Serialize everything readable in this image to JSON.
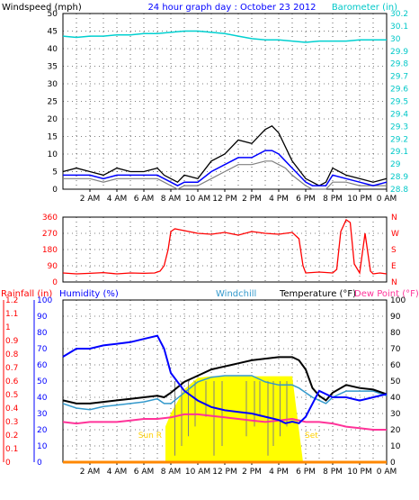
{
  "chart_data": [
    {
      "type": "line",
      "panel": "wind",
      "title": "24 hour graph day : October 23 2012",
      "ylabel_left": "Windspeed (mph)",
      "ylabel_right": "Barometer (in)",
      "ylim_left": [
        0,
        50
      ],
      "ylim_right": [
        28.8,
        30.2
      ],
      "yticks_left": [
        "0",
        "5",
        "10",
        "15",
        "20",
        "25",
        "30",
        "35",
        "40",
        "45",
        "50"
      ],
      "yticks_right": [
        "28.8",
        "28.9",
        "29",
        "29.1",
        "29.2",
        "29.3",
        "29.4",
        "29.5",
        "29.6",
        "29.7",
        "29.8",
        "29.9",
        "30",
        "30.1",
        "30.2"
      ],
      "xticks": [
        "2 AM",
        "4 AM",
        "6 AM",
        "8 AM",
        "10 AM",
        "12 PM",
        "2 PM",
        "4 PM",
        "6 PM",
        "8 PM",
        "10 PM",
        "0 AM"
      ],
      "x_hours": [
        0,
        24
      ],
      "grid": true,
      "colors": {
        "gust": "#000000",
        "avg": "#0000ff",
        "gray": "#808080",
        "baro": "#00d0d0",
        "title": "#0000ff",
        "right_axis": "#00c8c8"
      },
      "series": [
        {
          "name": "Barometer (in)",
          "axis": "right",
          "color": "#00d0d0",
          "x": [
            0,
            1,
            2,
            3,
            4,
            5,
            6,
            7,
            8,
            9,
            10,
            11,
            12,
            13,
            14,
            15,
            16,
            17,
            18,
            19,
            20,
            21,
            22,
            23,
            24
          ],
          "values": [
            30.02,
            30.01,
            30.02,
            30.02,
            30.03,
            30.03,
            30.04,
            30.04,
            30.05,
            30.06,
            30.06,
            30.05,
            30.04,
            30.02,
            30.0,
            29.99,
            29.99,
            29.98,
            29.97,
            29.98,
            29.98,
            29.98,
            29.99,
            29.99,
            29.99
          ]
        },
        {
          "axis": "left",
          "color": "#000000",
          "x": [
            0,
            1,
            2,
            3,
            4,
            5,
            6,
            7,
            7.5,
            8,
            8.5,
            9,
            10,
            11,
            12,
            13,
            14,
            15,
            15.5,
            16,
            16.5,
            17,
            18,
            18.5,
            19,
            19.5,
            20,
            21,
            22,
            23,
            24
          ],
          "values": [
            5,
            6,
            5,
            4,
            6,
            5,
            5,
            6,
            4,
            3,
            2,
            4,
            3,
            8,
            10,
            14,
            13,
            17,
            18,
            16,
            12,
            8,
            3,
            2,
            1,
            2,
            6,
            4,
            3,
            2,
            3
          ]
        },
        {
          "axis": "left",
          "color": "#0000ff",
          "x": [
            0,
            1,
            2,
            3,
            4,
            5,
            6,
            7,
            7.5,
            8,
            8.5,
            9,
            10,
            11,
            12,
            13,
            14,
            15,
            15.5,
            16,
            16.5,
            17,
            18,
            18.5,
            19,
            19.5,
            20,
            21,
            22,
            23,
            24
          ],
          "values": [
            4,
            4,
            4,
            3,
            4,
            4,
            4,
            4,
            3,
            2,
            1,
            2,
            2,
            5,
            7,
            9,
            9,
            11,
            11,
            10,
            8,
            6,
            2,
            1,
            1,
            1,
            4,
            3,
            2,
            1,
            2
          ]
        },
        {
          "axis": "left",
          "color": "#808080",
          "x": [
            0,
            1,
            2,
            3,
            4,
            5,
            6,
            7,
            7.5,
            8,
            8.5,
            9,
            10,
            11,
            12,
            13,
            14,
            15,
            15.5,
            16,
            16.5,
            17,
            18,
            18.5,
            19,
            19.5,
            20,
            21,
            22,
            23,
            24
          ],
          "values": [
            3,
            3,
            3,
            2,
            3,
            3,
            3,
            3,
            2,
            1,
            0,
            1,
            1,
            3,
            5,
            7,
            7,
            8,
            8,
            7,
            6,
            4,
            1,
            0,
            0,
            0,
            2,
            2,
            1,
            1,
            1
          ]
        }
      ]
    },
    {
      "type": "line",
      "panel": "direction",
      "ylim": [
        0,
        360
      ],
      "yticks_left": [
        "0",
        "90",
        "180",
        "270",
        "360"
      ],
      "yticks_right": [
        "N",
        "E",
        "S",
        "W",
        "N"
      ],
      "xticks": [],
      "x_hours": [
        0,
        24
      ],
      "grid": true,
      "colors": {
        "line": "#ff0000",
        "left_ticks": "#ff0000",
        "right_ticks": "#ff0000"
      },
      "series": [
        {
          "color": "#ff0000",
          "x": [
            0,
            1,
            2,
            3,
            4,
            5,
            6,
            6.8,
            7.2,
            7.5,
            7.8,
            8,
            8.3,
            9,
            10,
            11,
            12,
            13,
            14,
            15,
            16,
            17,
            17.5,
            17.8,
            18,
            19,
            20,
            20.3,
            20.6,
            21,
            21.3,
            21.6,
            22,
            22.4,
            22.8,
            23,
            23.5,
            24
          ],
          "values": [
            50,
            45,
            48,
            52,
            45,
            50,
            48,
            50,
            60,
            90,
            180,
            280,
            295,
            285,
            270,
            265,
            275,
            260,
            280,
            270,
            265,
            275,
            240,
            90,
            50,
            55,
            50,
            70,
            280,
            345,
            330,
            100,
            50,
            270,
            60,
            45,
            50,
            45
          ]
        }
      ]
    },
    {
      "type": "line",
      "panel": "temperature",
      "ylabel_left_rain": "Rainfall (in)",
      "ylabel_left_hum": "Humidity (%)",
      "label_windchill": "Windchill",
      "ylabel_right": "Temperature (°F)",
      "label_dewpoint": "Dew Point (°F)",
      "ylim_hum": [
        0,
        100
      ],
      "ylim_rain": [
        0,
        1.2
      ],
      "ylim_temp": [
        0,
        105
      ],
      "yticks_hum": [
        "0",
        "10",
        "20",
        "30",
        "40",
        "50",
        "60",
        "70",
        "80",
        "90",
        "100"
      ],
      "yticks_rain": [
        "0",
        "0.1",
        "0.2",
        "0.3",
        "0.4",
        "0.5",
        "0.6",
        "0.7",
        "0.8",
        "0.9",
        "1",
        "1.1",
        "1.2"
      ],
      "yticks_temp": [
        "0",
        "10",
        "20",
        "30",
        "40",
        "50",
        "60",
        "70",
        "80",
        "90",
        "100"
      ],
      "xticks": [
        "2 AM",
        "4 AM",
        "6 AM",
        "8 AM",
        "10 AM",
        "12 PM",
        "2 PM",
        "4 PM",
        "6 PM",
        "8 PM",
        "10 PM",
        "0 AM"
      ],
      "x_hours": [
        0,
        24
      ],
      "grid": true,
      "sunrise_label": "Sun R",
      "sunset_label": "Set",
      "sun_hours": [
        7.6,
        17.8
      ],
      "colors": {
        "rain_axis": "#ff0000",
        "hum_axis": "#0000ff",
        "windchill": "#3399cc",
        "temp": "#000000",
        "dew": "#ff3399",
        "solar": "#ffff00",
        "solar_spikes": "#808080",
        "rain_line": "#ff8800",
        "sun_label": "#ffd000"
      },
      "series": [
        {
          "axis": "temp",
          "color": "#000000",
          "x": [
            0,
            1,
            2,
            3,
            4,
            5,
            6,
            7,
            7.5,
            8,
            9,
            10,
            11,
            12,
            13,
            14,
            15,
            16,
            17,
            17.5,
            18,
            18.5,
            19,
            19.5,
            20,
            21,
            22,
            23,
            24
          ],
          "values": [
            40,
            38,
            38,
            39,
            40,
            41,
            42,
            43,
            42,
            45,
            52,
            56,
            60,
            62,
            64,
            66,
            67,
            68,
            68,
            66,
            60,
            48,
            43,
            40,
            45,
            50,
            48,
            47,
            44
          ]
        },
        {
          "axis": "temp",
          "color": "#3399cc",
          "x": [
            0,
            1,
            2,
            3,
            4,
            5,
            6,
            7,
            7.5,
            8,
            9,
            10,
            11,
            12,
            13,
            14,
            15,
            16,
            17,
            17.5,
            18,
            18.5,
            19,
            19.5,
            20,
            21,
            22,
            23,
            24
          ],
          "values": [
            38,
            35,
            34,
            36,
            37,
            38,
            39,
            41,
            38,
            38,
            45,
            52,
            55,
            56,
            56,
            56,
            52,
            50,
            50,
            48,
            45,
            42,
            40,
            38,
            42,
            46,
            46,
            46,
            43
          ]
        },
        {
          "axis": "temp",
          "color": "#ff3399",
          "x": [
            0,
            1,
            2,
            3,
            4,
            5,
            6,
            7,
            8,
            9,
            10,
            11,
            12,
            13,
            14,
            15,
            16,
            17,
            18,
            19,
            20,
            21,
            22,
            23,
            24
          ],
          "values": [
            26,
            25,
            26,
            26,
            26,
            27,
            28,
            28,
            29,
            31,
            31,
            30,
            29,
            28,
            27,
            26,
            27,
            28,
            26,
            26,
            25,
            23,
            22,
            21,
            21
          ]
        },
        {
          "axis": "hum",
          "color": "#0000ff",
          "x": [
            0,
            1,
            2,
            3,
            4,
            5,
            6,
            7,
            7.5,
            8,
            9,
            10,
            11,
            12,
            13,
            14,
            15,
            16,
            16.5,
            17,
            17.5,
            18,
            18.5,
            19,
            20,
            21,
            22,
            23,
            24
          ],
          "values": [
            65,
            70,
            70,
            72,
            73,
            74,
            76,
            78,
            70,
            55,
            44,
            38,
            34,
            32,
            31,
            30,
            28,
            26,
            24,
            25,
            24,
            28,
            36,
            44,
            40,
            40,
            38,
            40,
            42
          ]
        },
        {
          "axis": "hum",
          "color": "#ffff00",
          "x": [
            7.6,
            8,
            9,
            10,
            11,
            12,
            13,
            14,
            15,
            16,
            17,
            17.8
          ],
          "values": [
            22,
            30,
            45,
            52,
            53,
            53,
            53,
            53,
            53,
            53,
            53,
            0
          ]
        },
        {
          "axis": "rain",
          "color": "#ff8800",
          "x": [
            0,
            24
          ],
          "values": [
            0,
            0
          ]
        }
      ]
    }
  ]
}
